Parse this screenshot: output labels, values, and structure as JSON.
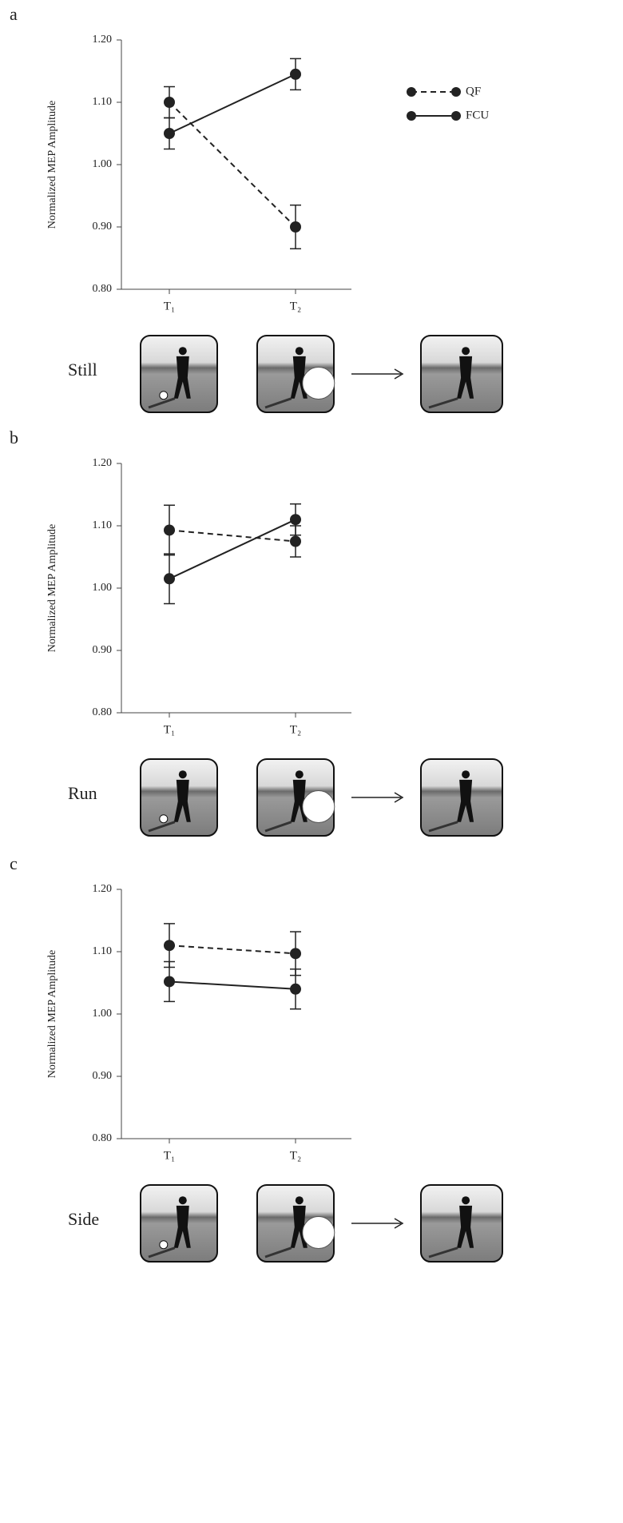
{
  "chart_data": [
    {
      "type": "line",
      "panel_label": "a",
      "condition": "Still",
      "ylabel": "Normalized MEP Amplitude",
      "categories": [
        "T₁",
        "T₂"
      ],
      "ylim": [
        0.8,
        1.2
      ],
      "yticks": [
        {
          "value": 0.8,
          "label": "0.80"
        },
        {
          "value": 0.9,
          "label": "0.90"
        },
        {
          "value": 1.0,
          "label": "1.00"
        },
        {
          "value": 1.1,
          "label": "1.10"
        },
        {
          "value": 1.2,
          "label": "1.20"
        }
      ],
      "legend": "upper right",
      "series": [
        {
          "name": "QF",
          "color": "#222222",
          "dash": true,
          "values": [
            1.1,
            0.9
          ],
          "errors": [
            0.025,
            0.035
          ]
        },
        {
          "name": "FCU",
          "color": "#222222",
          "dash": false,
          "values": [
            1.05,
            1.145
          ],
          "errors": [
            0.025,
            0.025
          ]
        }
      ]
    },
    {
      "type": "line",
      "panel_label": "b",
      "condition": "Run",
      "ylabel": "Normalized MEP Amplitude",
      "categories": [
        "T₁",
        "T₂"
      ],
      "ylim": [
        0.8,
        1.2
      ],
      "yticks": [
        {
          "value": 0.8,
          "label": "0.80"
        },
        {
          "value": 0.9,
          "label": "0.90"
        },
        {
          "value": 1.0,
          "label": "1.00"
        },
        {
          "value": 1.1,
          "label": "1.10"
        },
        {
          "value": 1.2,
          "label": "1.20"
        }
      ],
      "series": [
        {
          "color": "#222222",
          "dash": true,
          "values": [
            1.093,
            1.075
          ],
          "errors": [
            0.04,
            0.025
          ]
        },
        {
          "color": "#222222",
          "dash": false,
          "values": [
            1.015,
            1.11
          ],
          "errors": [
            0.04,
            0.025
          ]
        }
      ]
    },
    {
      "type": "line",
      "panel_label": "c",
      "condition": "Side",
      "ylabel": "Normalized MEP Amplitude",
      "categories": [
        "T₁",
        "T₂"
      ],
      "ylim": [
        0.8,
        1.2
      ],
      "yticks": [
        {
          "value": 0.8,
          "label": "0.80"
        },
        {
          "value": 0.9,
          "label": "0.90"
        },
        {
          "value": 1.0,
          "label": "1.00"
        },
        {
          "value": 1.1,
          "label": "1.10"
        },
        {
          "value": 1.2,
          "label": "1.20"
        }
      ],
      "series": [
        {
          "color": "#222222",
          "dash": true,
          "values": [
            1.11,
            1.097
          ],
          "errors": [
            0.035,
            0.035
          ]
        },
        {
          "color": "#222222",
          "dash": false,
          "values": [
            1.052,
            1.04
          ],
          "errors": [
            0.032,
            0.032
          ]
        }
      ]
    }
  ]
}
